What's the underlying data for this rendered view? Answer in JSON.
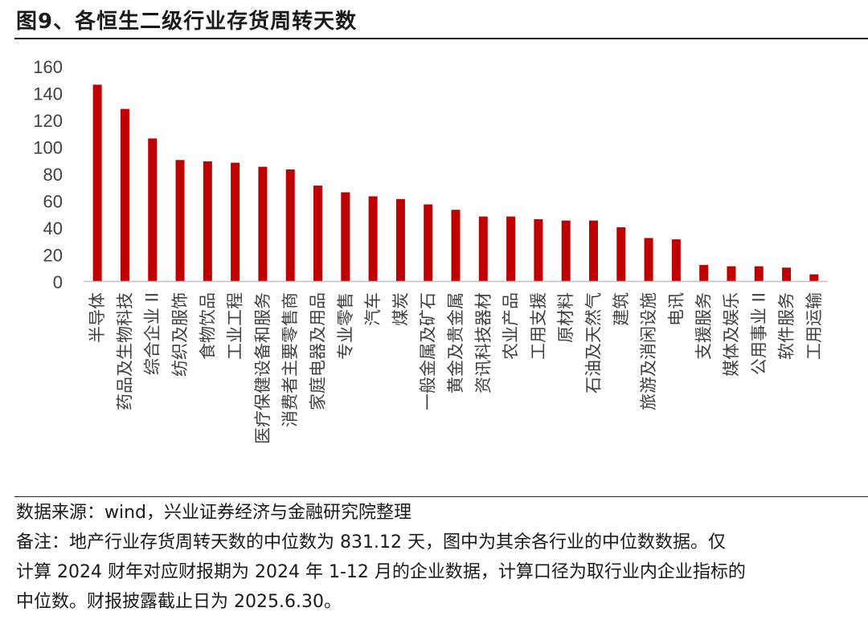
{
  "figure": {
    "title": "图9、各恒生二级行业存货周转天数"
  },
  "notes": {
    "source": "数据来源：wind，兴业证券经济与金融研究院整理",
    "remark_line1": "备注：地产行业存货周转天数的中位数为 831.12 天，图中为其余各行业的中位数数据。仅",
    "remark_line2": "计算 2024 财年对应财报期为 2024 年 1-12 月的企业数据，计算口径为取行业内企业指标的",
    "remark_line3": "中位数。财报披露截止日为 2025.6.30。"
  },
  "colors": {
    "bar": "#C00000",
    "axis": "#BFBFBF",
    "text": "#404040"
  },
  "chart_data": {
    "type": "bar",
    "title": "",
    "xlabel": "",
    "ylabel": "",
    "ylim": [
      0,
      160
    ],
    "yticks": [
      0,
      20,
      40,
      60,
      80,
      100,
      120,
      140,
      160
    ],
    "grid": false,
    "legend": "none",
    "categories": [
      "半导体",
      "药品及生物科技",
      "综合企业 II",
      "纺织及服饰",
      "食物饮品",
      "工业工程",
      "医疗保健设备和服务",
      "消费者主要零售商",
      "家庭电器及用品",
      "专业零售",
      "汽车",
      "煤炭",
      "一般金属及矿石",
      "黄金及贵金属",
      "资讯科技器材",
      "农业产品",
      "工用支援",
      "原材料",
      "石油及天然气",
      "建筑",
      "旅游及消闲设施",
      "电讯",
      "支援服务",
      "媒体及娱乐",
      "公用事业 II",
      "软件服务",
      "工用运输"
    ],
    "values": [
      146,
      128,
      106,
      90,
      89,
      88,
      85,
      83,
      71,
      66,
      63,
      61,
      57,
      53,
      48,
      48,
      46,
      45,
      45,
      40,
      32,
      31,
      12,
      11,
      11,
      10,
      5
    ]
  }
}
